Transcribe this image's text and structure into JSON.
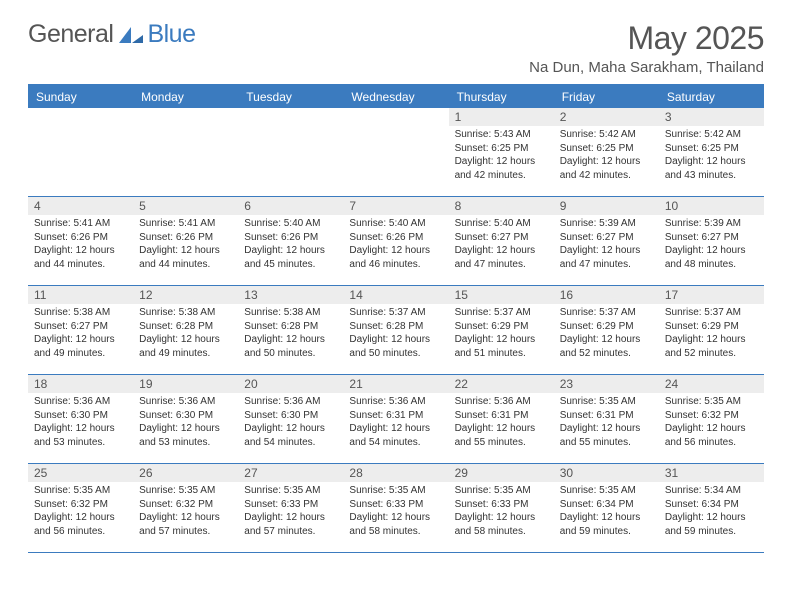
{
  "logo": {
    "part1": "General",
    "part2": "Blue"
  },
  "header": {
    "title": "May 2025",
    "location": "Na Dun, Maha Sarakham, Thailand"
  },
  "colors": {
    "accent": "#3b7bbf",
    "daynum_bg": "#ededed",
    "text": "#333333",
    "muted": "#555555"
  },
  "dow": [
    "Sunday",
    "Monday",
    "Tuesday",
    "Wednesday",
    "Thursday",
    "Friday",
    "Saturday"
  ],
  "weeks": [
    [
      {
        "day": "",
        "sunrise": "",
        "sunset": "",
        "daylight": ""
      },
      {
        "day": "",
        "sunrise": "",
        "sunset": "",
        "daylight": ""
      },
      {
        "day": "",
        "sunrise": "",
        "sunset": "",
        "daylight": ""
      },
      {
        "day": "",
        "sunrise": "",
        "sunset": "",
        "daylight": ""
      },
      {
        "day": "1",
        "sunrise": "Sunrise: 5:43 AM",
        "sunset": "Sunset: 6:25 PM",
        "daylight": "Daylight: 12 hours and 42 minutes."
      },
      {
        "day": "2",
        "sunrise": "Sunrise: 5:42 AM",
        "sunset": "Sunset: 6:25 PM",
        "daylight": "Daylight: 12 hours and 42 minutes."
      },
      {
        "day": "3",
        "sunrise": "Sunrise: 5:42 AM",
        "sunset": "Sunset: 6:25 PM",
        "daylight": "Daylight: 12 hours and 43 minutes."
      }
    ],
    [
      {
        "day": "4",
        "sunrise": "Sunrise: 5:41 AM",
        "sunset": "Sunset: 6:26 PM",
        "daylight": "Daylight: 12 hours and 44 minutes."
      },
      {
        "day": "5",
        "sunrise": "Sunrise: 5:41 AM",
        "sunset": "Sunset: 6:26 PM",
        "daylight": "Daylight: 12 hours and 44 minutes."
      },
      {
        "day": "6",
        "sunrise": "Sunrise: 5:40 AM",
        "sunset": "Sunset: 6:26 PM",
        "daylight": "Daylight: 12 hours and 45 minutes."
      },
      {
        "day": "7",
        "sunrise": "Sunrise: 5:40 AM",
        "sunset": "Sunset: 6:26 PM",
        "daylight": "Daylight: 12 hours and 46 minutes."
      },
      {
        "day": "8",
        "sunrise": "Sunrise: 5:40 AM",
        "sunset": "Sunset: 6:27 PM",
        "daylight": "Daylight: 12 hours and 47 minutes."
      },
      {
        "day": "9",
        "sunrise": "Sunrise: 5:39 AM",
        "sunset": "Sunset: 6:27 PM",
        "daylight": "Daylight: 12 hours and 47 minutes."
      },
      {
        "day": "10",
        "sunrise": "Sunrise: 5:39 AM",
        "sunset": "Sunset: 6:27 PM",
        "daylight": "Daylight: 12 hours and 48 minutes."
      }
    ],
    [
      {
        "day": "11",
        "sunrise": "Sunrise: 5:38 AM",
        "sunset": "Sunset: 6:27 PM",
        "daylight": "Daylight: 12 hours and 49 minutes."
      },
      {
        "day": "12",
        "sunrise": "Sunrise: 5:38 AM",
        "sunset": "Sunset: 6:28 PM",
        "daylight": "Daylight: 12 hours and 49 minutes."
      },
      {
        "day": "13",
        "sunrise": "Sunrise: 5:38 AM",
        "sunset": "Sunset: 6:28 PM",
        "daylight": "Daylight: 12 hours and 50 minutes."
      },
      {
        "day": "14",
        "sunrise": "Sunrise: 5:37 AM",
        "sunset": "Sunset: 6:28 PM",
        "daylight": "Daylight: 12 hours and 50 minutes."
      },
      {
        "day": "15",
        "sunrise": "Sunrise: 5:37 AM",
        "sunset": "Sunset: 6:29 PM",
        "daylight": "Daylight: 12 hours and 51 minutes."
      },
      {
        "day": "16",
        "sunrise": "Sunrise: 5:37 AM",
        "sunset": "Sunset: 6:29 PM",
        "daylight": "Daylight: 12 hours and 52 minutes."
      },
      {
        "day": "17",
        "sunrise": "Sunrise: 5:37 AM",
        "sunset": "Sunset: 6:29 PM",
        "daylight": "Daylight: 12 hours and 52 minutes."
      }
    ],
    [
      {
        "day": "18",
        "sunrise": "Sunrise: 5:36 AM",
        "sunset": "Sunset: 6:30 PM",
        "daylight": "Daylight: 12 hours and 53 minutes."
      },
      {
        "day": "19",
        "sunrise": "Sunrise: 5:36 AM",
        "sunset": "Sunset: 6:30 PM",
        "daylight": "Daylight: 12 hours and 53 minutes."
      },
      {
        "day": "20",
        "sunrise": "Sunrise: 5:36 AM",
        "sunset": "Sunset: 6:30 PM",
        "daylight": "Daylight: 12 hours and 54 minutes."
      },
      {
        "day": "21",
        "sunrise": "Sunrise: 5:36 AM",
        "sunset": "Sunset: 6:31 PM",
        "daylight": "Daylight: 12 hours and 54 minutes."
      },
      {
        "day": "22",
        "sunrise": "Sunrise: 5:36 AM",
        "sunset": "Sunset: 6:31 PM",
        "daylight": "Daylight: 12 hours and 55 minutes."
      },
      {
        "day": "23",
        "sunrise": "Sunrise: 5:35 AM",
        "sunset": "Sunset: 6:31 PM",
        "daylight": "Daylight: 12 hours and 55 minutes."
      },
      {
        "day": "24",
        "sunrise": "Sunrise: 5:35 AM",
        "sunset": "Sunset: 6:32 PM",
        "daylight": "Daylight: 12 hours and 56 minutes."
      }
    ],
    [
      {
        "day": "25",
        "sunrise": "Sunrise: 5:35 AM",
        "sunset": "Sunset: 6:32 PM",
        "daylight": "Daylight: 12 hours and 56 minutes."
      },
      {
        "day": "26",
        "sunrise": "Sunrise: 5:35 AM",
        "sunset": "Sunset: 6:32 PM",
        "daylight": "Daylight: 12 hours and 57 minutes."
      },
      {
        "day": "27",
        "sunrise": "Sunrise: 5:35 AM",
        "sunset": "Sunset: 6:33 PM",
        "daylight": "Daylight: 12 hours and 57 minutes."
      },
      {
        "day": "28",
        "sunrise": "Sunrise: 5:35 AM",
        "sunset": "Sunset: 6:33 PM",
        "daylight": "Daylight: 12 hours and 58 minutes."
      },
      {
        "day": "29",
        "sunrise": "Sunrise: 5:35 AM",
        "sunset": "Sunset: 6:33 PM",
        "daylight": "Daylight: 12 hours and 58 minutes."
      },
      {
        "day": "30",
        "sunrise": "Sunrise: 5:35 AM",
        "sunset": "Sunset: 6:34 PM",
        "daylight": "Daylight: 12 hours and 59 minutes."
      },
      {
        "day": "31",
        "sunrise": "Sunrise: 5:34 AM",
        "sunset": "Sunset: 6:34 PM",
        "daylight": "Daylight: 12 hours and 59 minutes."
      }
    ]
  ]
}
